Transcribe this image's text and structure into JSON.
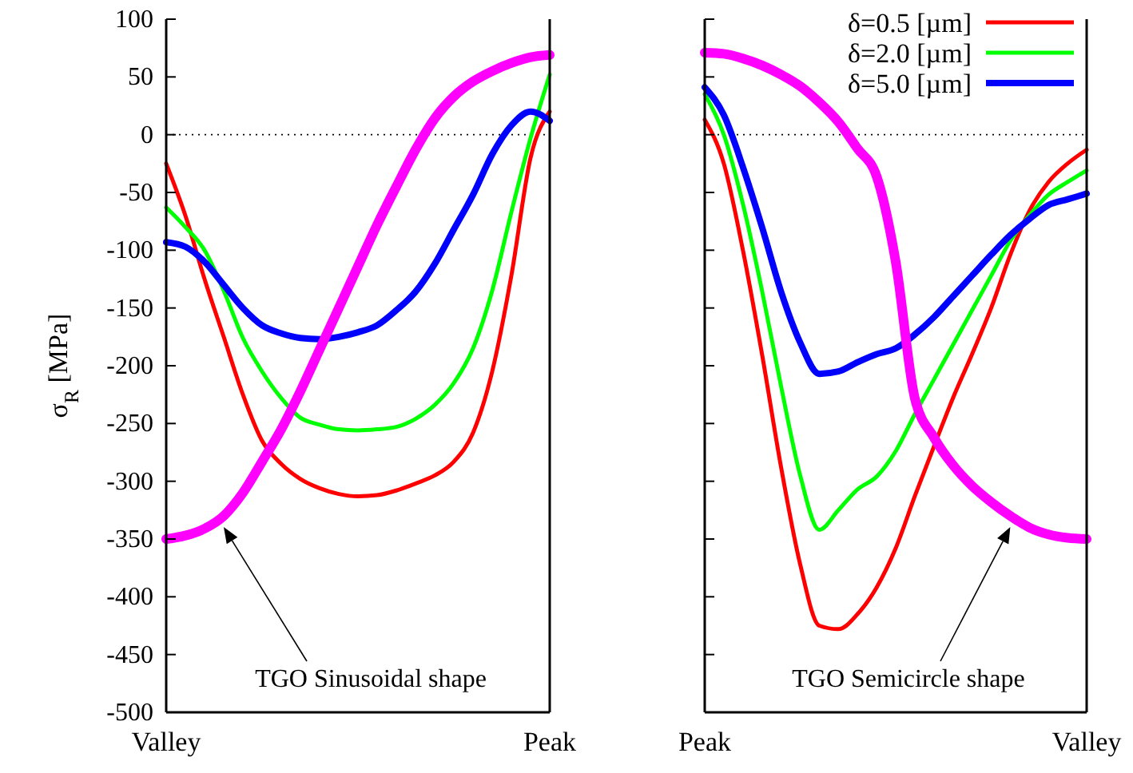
{
  "chart_data": [
    {
      "type": "line",
      "ylabel": "σ$_{R}$ [MPa]",
      "categories": [
        "Valley",
        null,
        null,
        null,
        null,
        null,
        null,
        null,
        null,
        null,
        null,
        null,
        null,
        null,
        null,
        null,
        null,
        null,
        null,
        null,
        "Peak"
      ],
      "ylim": [
        -500,
        100
      ],
      "yticks": [
        -500,
        -450,
        -400,
        -350,
        -300,
        -250,
        -200,
        -150,
        -100,
        -50,
        0,
        50,
        100
      ],
      "grid": false,
      "legend": false,
      "series": [
        {
          "color": "#ff0000",
          "values": [
            -25,
            -70,
            -125,
            -175,
            -225,
            -265,
            -285,
            -298,
            -306,
            -311,
            -313,
            -312,
            -308,
            -302,
            -295,
            -283,
            -258,
            -205,
            -122,
            -20,
            20
          ]
        },
        {
          "color": "#00ff00",
          "values": [
            -63,
            -80,
            -100,
            -135,
            -176,
            -205,
            -228,
            -245,
            -251,
            -255,
            -256,
            -255,
            -253,
            -246,
            -234,
            -215,
            -185,
            -135,
            -67,
            -3,
            52
          ]
        },
        {
          "color": "#0000ff",
          "values": [
            -93,
            -97,
            -110,
            -130,
            -150,
            -165,
            -172,
            -176,
            -177,
            -175,
            -171,
            -165,
            -152,
            -136,
            -112,
            -82,
            -52,
            -17,
            8,
            20,
            12
          ]
        },
        {
          "color": "#ff00ff",
          "values": [
            -350,
            -347,
            -341,
            -330,
            -310,
            -283,
            -255,
            -222,
            -186,
            -150,
            -114,
            -78,
            -45,
            -13,
            14,
            33,
            46,
            55,
            62,
            67,
            69
          ]
        }
      ],
      "ref_lines": [
        {
          "axis": "y",
          "value": 0,
          "line_style": "dotted"
        }
      ],
      "annotations": [
        "TGO Sinusoidal shape"
      ]
    },
    {
      "type": "line",
      "categories": [
        "Peak",
        null,
        null,
        null,
        null,
        null,
        null,
        null,
        null,
        null,
        null,
        null,
        null,
        null,
        null,
        null,
        null,
        null,
        null,
        null,
        "Valley"
      ],
      "ylim": [
        -500,
        100
      ],
      "yticks": [
        -500,
        -450,
        -400,
        -350,
        -300,
        -250,
        -200,
        -150,
        -100,
        -50,
        0,
        50,
        100
      ],
      "tick_labels": "x",
      "grid": false,
      "legend": "top right",
      "series": [
        {
          "name": "δ=0.5 [µm]",
          "color": "#ff0000",
          "values": [
            13,
            -25,
            -100,
            -190,
            -288,
            -372,
            -425,
            -428,
            -415,
            -392,
            -358,
            -313,
            -270,
            -228,
            -190,
            -150,
            -104,
            -66,
            -41,
            -25,
            -13
          ]
        },
        {
          "name": "δ=2.0 [µm]",
          "color": "#00ff00",
          "values": [
            35,
            0,
            -60,
            -135,
            -218,
            -295,
            -342,
            -325,
            -307,
            -296,
            -274,
            -242,
            -212,
            -182,
            -152,
            -122,
            -92,
            -70,
            -52,
            -41,
            -31
          ]
        },
        {
          "name": "δ=5.0 [µm]",
          "color": "#0000ff",
          "values": [
            41,
            17,
            -28,
            -80,
            -136,
            -180,
            -207,
            -205,
            -197,
            -190,
            -185,
            -173,
            -158,
            -140,
            -122,
            -104,
            -87,
            -73,
            -61,
            -56,
            -51
          ]
        },
        {
          "color": "#ff00ff",
          "values": [
            71,
            70,
            66,
            60,
            52,
            42,
            28,
            11,
            -12,
            -36,
            -110,
            -228,
            -262,
            -286,
            -304,
            -318,
            -330,
            -340,
            -346,
            -349,
            -350
          ]
        }
      ],
      "ref_lines": [
        {
          "axis": "y",
          "value": 0,
          "line_style": "dotted"
        }
      ],
      "annotations": [
        "TGO Semicircle shape"
      ]
    }
  ]
}
